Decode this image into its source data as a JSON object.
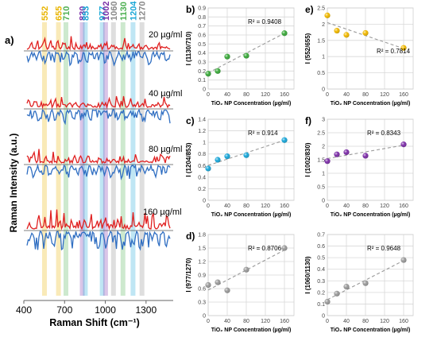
{
  "chart_data": [
    {
      "type": "line",
      "panel_label": "a)",
      "xlabel": "Raman Shift (cm⁻¹)",
      "ylabel": "Raman Intensity (a.u.)",
      "xlim": [
        400,
        1500
      ],
      "x_ticks": [
        "400",
        "700",
        "1000",
        "1300"
      ],
      "bands": [
        {
          "label": "552",
          "x": 552,
          "color": "#e8b400"
        },
        {
          "label": "655",
          "x": 655,
          "color": "#e8b400"
        },
        {
          "label": "710",
          "x": 710,
          "color": "#4caf50"
        },
        {
          "label": "830",
          "x": 830,
          "color": "#7b2fa8"
        },
        {
          "label": "853",
          "x": 853,
          "color": "#1aa7d6"
        },
        {
          "label": "977",
          "x": 977,
          "color": "#1aa7d6"
        },
        {
          "label": "1002",
          "x": 1002,
          "color": "#7b2fa8"
        },
        {
          "label": "1060",
          "x": 1060,
          "color": "#888888"
        },
        {
          "label": "1130",
          "x": 1130,
          "color": "#4caf50"
        },
        {
          "label": "1204",
          "x": 1204,
          "color": "#1aa7d6"
        },
        {
          "label": "1270",
          "x": 1270,
          "color": "#888888"
        }
      ],
      "series": [
        {
          "name": "20 µg/ml"
        },
        {
          "name": "40 µg/ml"
        },
        {
          "name": "80 µg/ml"
        },
        {
          "name": "160 µg/ml"
        }
      ]
    },
    {
      "type": "scatter",
      "panel_label": "b)",
      "ylabel": "I (1130/710)",
      "xlabel": "TiO₂ NP Concentration (µg/ml)",
      "color": "#3aa83a",
      "x": [
        0,
        20,
        40,
        80,
        160
      ],
      "y": [
        0.17,
        0.2,
        0.36,
        0.37,
        0.62
      ],
      "r2": "R² = 0.9408",
      "ylim": [
        0,
        0.9
      ],
      "y_ticks": [
        "0",
        "0.1",
        "0.2",
        "0.3",
        "0.4",
        "0.5",
        "0.6",
        "0.7",
        "0.8",
        "0.9"
      ],
      "x_ticks": [
        "0",
        "40",
        "80",
        "120",
        "160"
      ]
    },
    {
      "type": "scatter",
      "panel_label": "c)",
      "ylabel": "I (1204/853)",
      "xlabel": "TiO₂ NP Concentration (µg/ml)",
      "color": "#19a6d8",
      "x": [
        0,
        20,
        40,
        80,
        160
      ],
      "y": [
        0.55,
        0.7,
        0.76,
        0.78,
        1.04
      ],
      "r2": "R² = 0.914",
      "ylim": [
        0,
        1.4
      ],
      "y_ticks": [
        "0",
        "0.2",
        "0.4",
        "0.6",
        "0.8",
        "1",
        "1.2",
        "1.4"
      ],
      "x_ticks": [
        "0",
        "40",
        "80",
        "120",
        "160"
      ]
    },
    {
      "type": "scatter",
      "panel_label": "d)",
      "ylabel": "I (977/1270)",
      "xlabel": "TiO₂ NP Concentration (µg/ml)",
      "color": "#9a9a9a",
      "x": [
        0,
        20,
        40,
        80,
        160
      ],
      "y": [
        0.68,
        0.74,
        0.56,
        1.02,
        1.5
      ],
      "r2": "R² = 0.8706",
      "ylim": [
        0,
        1.8
      ],
      "y_ticks": [
        "0",
        "0.3",
        "0.6",
        "0.9",
        "1.2",
        "1.5",
        "1.8"
      ],
      "x_ticks": [
        "0",
        "40",
        "80",
        "120",
        "160"
      ]
    },
    {
      "type": "scatter",
      "panel_label": "e)",
      "ylabel": "I (552/655)",
      "xlabel": "TiO₂ NP Concentration (µg/ml)",
      "color": "#f0b800",
      "x": [
        0,
        20,
        40,
        80,
        160
      ],
      "y": [
        2.27,
        1.8,
        1.67,
        1.73,
        1.27
      ],
      "r2": "R² = 0.7814",
      "ylim": [
        0,
        2.5
      ],
      "y_ticks": [
        "0",
        "0.5",
        "1",
        "1.5",
        "2",
        "2.5"
      ],
      "x_ticks": [
        "0",
        "40",
        "80",
        "120",
        "160"
      ]
    },
    {
      "type": "scatter",
      "panel_label": "f)",
      "ylabel": "I (1002/830)",
      "xlabel": "TiO₂ NP Concentration (µg/ml)",
      "color": "#7d2fa8",
      "x": [
        0,
        20,
        40,
        80,
        160
      ],
      "y": [
        1.45,
        1.7,
        1.78,
        1.65,
        2.07
      ],
      "r2": "R² = 0.8343",
      "ylim": [
        0,
        3
      ],
      "y_ticks": [
        "0",
        "0.5",
        "1",
        "1.5",
        "2",
        "2.5",
        "3"
      ],
      "x_ticks": [
        "0",
        "40",
        "80",
        "120",
        "160"
      ]
    },
    {
      "type": "scatter",
      "panel_label": "",
      "ylabel": "I (1060/1130)",
      "xlabel": "TiO₂ NP Concentration (µg/ml)",
      "color": "#9a9a9a",
      "x": [
        0,
        20,
        40,
        80,
        160
      ],
      "y": [
        0.12,
        0.19,
        0.25,
        0.28,
        0.48
      ],
      "r2": "R² = 0.9648",
      "ylim": [
        0,
        0.7
      ],
      "y_ticks": [
        "0",
        "0.1",
        "0.2",
        "0.3",
        "0.4",
        "0.5",
        "0.6",
        "0.7"
      ],
      "x_ticks": [
        "0",
        "40",
        "80",
        "120",
        "160"
      ]
    }
  ]
}
